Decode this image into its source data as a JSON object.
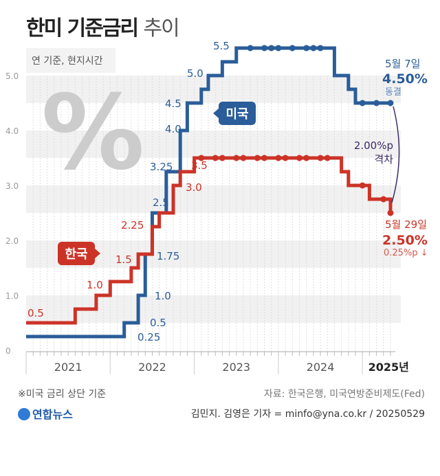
{
  "title": {
    "main": "한미 기준금리",
    "sub": "추이"
  },
  "note_unit": "연 기준, 현지시간",
  "colors": {
    "us": "#2a5d99",
    "korea": "#cc3327",
    "gap": "#3b2a66",
    "band": "#f1f1f1"
  },
  "chart_data": {
    "type": "line",
    "step": true,
    "ylim": [
      0,
      5.5
    ],
    "yticks": [
      "0",
      "1.0",
      "2.0",
      "3.0",
      "4.0",
      "5.0"
    ],
    "xticks": [
      "2021",
      "2022",
      "2023",
      "2024",
      "2025년"
    ],
    "series": [
      {
        "name": "미국",
        "steps": [
          [
            "2021-01",
            0.25
          ],
          [
            "2022-03",
            0.5
          ],
          [
            "2022-05",
            1.0
          ],
          [
            "2022-06",
            1.75
          ],
          [
            "2022-07",
            2.5
          ],
          [
            "2022-09",
            3.25
          ],
          [
            "2022-11",
            4.0
          ],
          [
            "2022-12",
            4.5
          ],
          [
            "2023-02",
            4.75
          ],
          [
            "2023-03",
            5.0
          ],
          [
            "2023-05",
            5.25
          ],
          [
            "2023-07",
            5.5
          ],
          [
            "2024-09",
            5.0
          ],
          [
            "2024-11",
            4.75
          ],
          [
            "2024-12",
            4.5
          ],
          [
            "2025-05",
            4.5
          ]
        ],
        "holds": [
          "2023-09",
          "2023-11",
          "2023-12",
          "2024-01",
          "2024-03",
          "2024-05",
          "2024-06",
          "2024-07",
          "2025-01",
          "2025-03",
          "2025-05"
        ],
        "labels": [
          "0.25",
          "0.5",
          "1.0",
          "1.75",
          "2.5",
          "3.25",
          "4.0",
          "4.5",
          "5.0",
          "5.5"
        ]
      },
      {
        "name": "한국",
        "steps": [
          [
            "2021-01",
            0.5
          ],
          [
            "2021-08",
            0.75
          ],
          [
            "2021-11",
            1.0
          ],
          [
            "2022-01",
            1.25
          ],
          [
            "2022-04",
            1.5
          ],
          [
            "2022-05",
            1.75
          ],
          [
            "2022-07",
            2.25
          ],
          [
            "2022-08",
            2.5
          ],
          [
            "2022-10",
            3.0
          ],
          [
            "2022-11",
            3.25
          ],
          [
            "2023-01",
            3.5
          ],
          [
            "2024-10",
            3.25
          ],
          [
            "2024-11",
            3.0
          ],
          [
            "2025-02",
            2.75
          ],
          [
            "2025-05",
            2.5
          ]
        ],
        "holds": [
          "2023-02",
          "2023-04",
          "2023-05",
          "2023-07",
          "2023-08",
          "2023-10",
          "2023-11",
          "2024-01",
          "2024-02",
          "2024-04",
          "2024-05",
          "2024-07",
          "2024-08",
          "2025-01",
          "2025-04",
          "2025-05"
        ],
        "labels": [
          "0.5",
          "1.0",
          "1.5",
          "2.25",
          "3.0",
          "3.5"
        ]
      }
    ],
    "annotations": {
      "us_date": "5월 7일",
      "us_rate": "4.50%",
      "us_note": "동결",
      "kr_date": "5월 29일",
      "kr_rate": "2.50%",
      "kr_note": "0.25%p ↓",
      "gap": "2.00%p",
      "gap_label": "격차"
    }
  },
  "footer": {
    "note": "※미국 금리 상단 기준",
    "source": "자료: 한국은행, 미국연방준비제도(Fed)",
    "logo": "연합뉴스",
    "credit": "김민지. 김영은 기자 = minfo@yna.co.kr / 20250529"
  }
}
